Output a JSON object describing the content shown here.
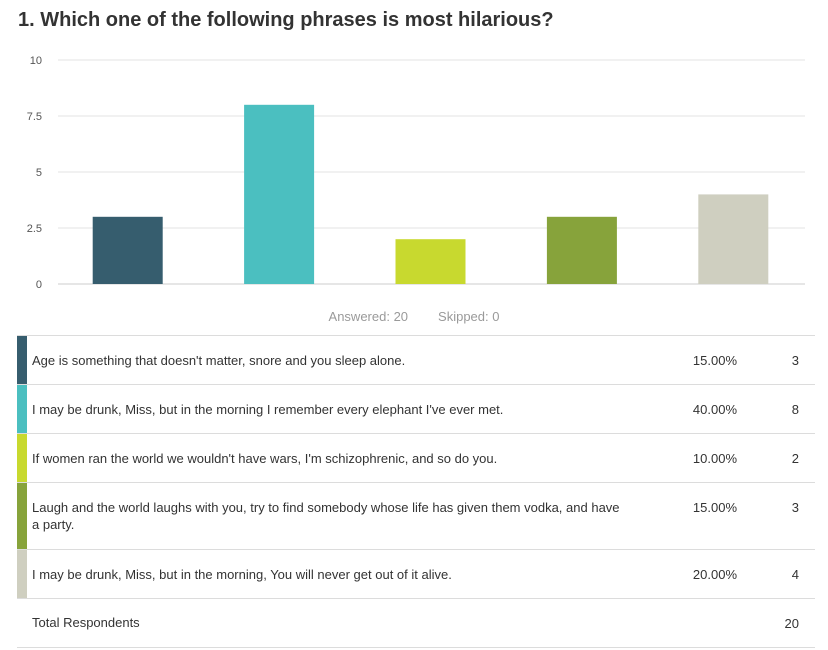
{
  "question": {
    "title": "1. Which one of the following phrases is most hilarious?"
  },
  "chart_data": {
    "type": "bar",
    "categories": [
      "Age is something that doesn't matter, snore and you sleep alone.",
      "I may be drunk, Miss, but in the morning I remember every elephant I've ever met.",
      "If women ran the world we wouldn't have wars, I'm schizophrenic, and so do you.",
      "Laugh and the world laughs with you, try to find somebody whose life has given them vodka, and have a party.",
      "I may be drunk, Miss, but in the morning, You will never get out of it alive."
    ],
    "values": [
      3,
      8,
      2,
      3,
      4
    ],
    "colors": [
      "#365d6e",
      "#4bbfc0",
      "#c8d92f",
      "#87a33b",
      "#cfcfc0"
    ],
    "ylim": [
      0,
      10
    ],
    "yticks": [
      "10",
      "7.5",
      "5",
      "2.5",
      "0"
    ],
    "ytick_values": [
      10,
      7.5,
      5,
      2.5,
      0
    ],
    "grid": true,
    "title": "",
    "xlabel": "",
    "ylabel": ""
  },
  "stats": {
    "answered": "Answered: 20",
    "skipped": "Skipped: 0"
  },
  "table": {
    "rows": [
      {
        "choice": "Age is something that doesn't matter, snore and you sleep alone.",
        "percent": "15.00%",
        "count": "3",
        "color": "#365d6e"
      },
      {
        "choice": "I may be drunk, Miss, but in the morning I remember every elephant I've ever met.",
        "percent": "40.00%",
        "count": "8",
        "color": "#4bbfc0"
      },
      {
        "choice": "If women ran the world we wouldn't have wars, I'm schizophrenic, and so do you.",
        "percent": "10.00%",
        "count": "2",
        "color": "#c8d92f"
      },
      {
        "choice": "Laugh and the world laughs with you, try to find somebody whose life has given them vodka, and have a party.",
        "percent": "15.00%",
        "count": "3",
        "color": "#87a33b"
      },
      {
        "choice": "I may be drunk, Miss, but in the morning, You will never get out of it alive.",
        "percent": "20.00%",
        "count": "4",
        "color": "#cfcfc0"
      }
    ],
    "total_label": "Total Respondents",
    "total_value": "20"
  }
}
